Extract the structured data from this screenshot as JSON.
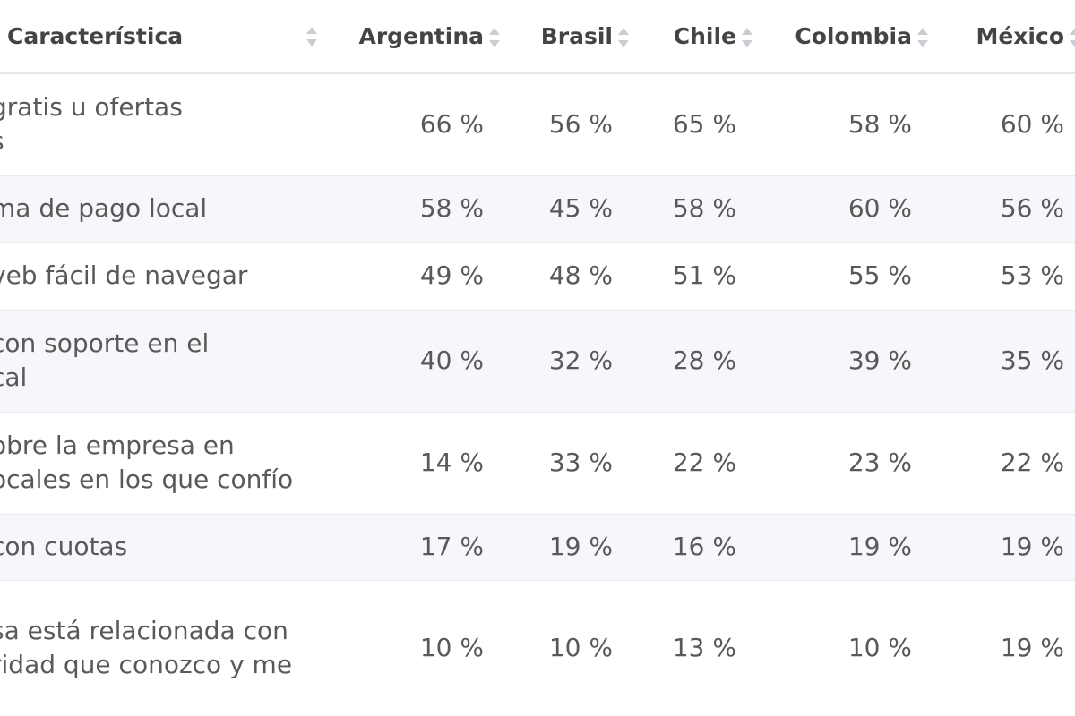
{
  "table": {
    "headers": [
      "Característica",
      "Argentina",
      "Brasil",
      "Chile",
      "Colombia",
      "México"
    ],
    "rows": [
      {
        "label_lines": [
          "gratis u ofertas",
          "s"
        ],
        "values": [
          "66 %",
          "56 %",
          "65 %",
          "58 %",
          "60 %"
        ]
      },
      {
        "label_lines": [
          "ma de pago local"
        ],
        "values": [
          "58 %",
          "45 %",
          "58 %",
          "60 %",
          "56 %"
        ]
      },
      {
        "label_lines": [
          "veb fácil de navegar"
        ],
        "values": [
          "49 %",
          "48 %",
          "51 %",
          "55 %",
          "53 %"
        ]
      },
      {
        "label_lines": [
          "con soporte en el",
          "cal"
        ],
        "values": [
          "40 %",
          "32 %",
          "28 %",
          "39 %",
          "35 %"
        ]
      },
      {
        "label_lines": [
          "obre la empresa en",
          "ocales en los que confío"
        ],
        "values": [
          "14 %",
          "33 %",
          "22 %",
          "23 %",
          "22 %"
        ]
      },
      {
        "label_lines": [
          "con cuotas"
        ],
        "values": [
          "17 %",
          "19 %",
          "16 %",
          "19 %",
          "19 %"
        ]
      },
      {
        "label_lines": [
          "sa está relacionada con",
          "ridad que conozco y me"
        ],
        "values": [
          "10 %",
          "10 %",
          "13 %",
          "10 %",
          "19 %"
        ]
      }
    ]
  },
  "icons": {
    "sort": "sort-up-down-icon"
  },
  "colors": {
    "header_text": "#444444",
    "body_text": "#595959",
    "row_shade": "#f5f7fa",
    "sort_icon": "#c9ced4",
    "border": "#e4e7eb"
  }
}
